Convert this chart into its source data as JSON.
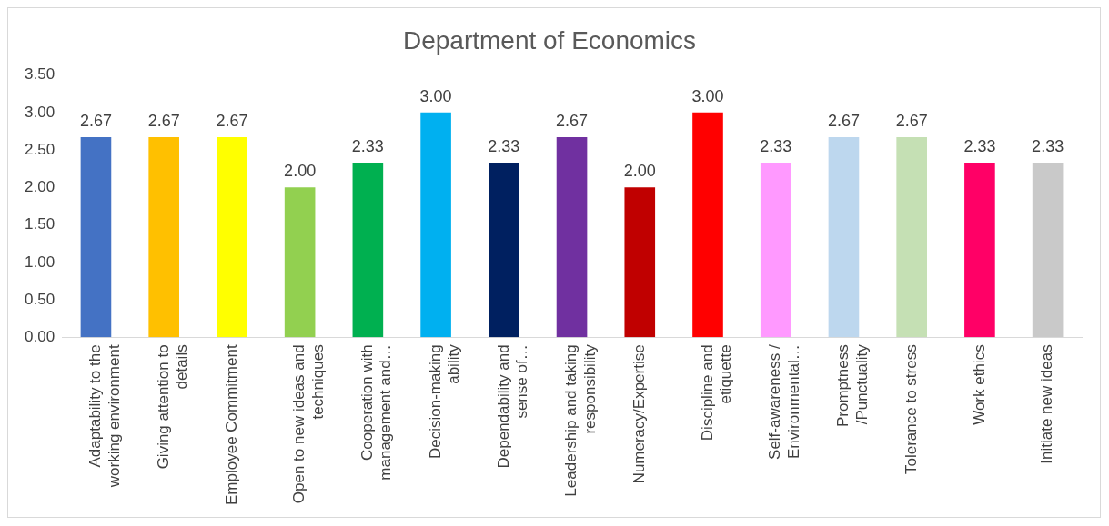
{
  "chart_data": {
    "type": "bar",
    "title": "Department of Economics",
    "categories": [
      "Adaptability to the working environment",
      "Giving attention to details",
      "Employee Commitment",
      "Open to new ideas and techniques",
      "Cooperation with management and…",
      "Decision-making ability",
      "Dependability and sense of…",
      "Leadership and taking responsibility",
      "Numeracy/Expertise",
      "Discipline and etiquette",
      "Self-awareness / Environmental…",
      "Promptness /Punctuality",
      "Tolerance to stress",
      "Work ethics",
      "Initiate new ideas"
    ],
    "values": [
      2.67,
      2.67,
      2.67,
      2.0,
      2.33,
      3.0,
      2.33,
      2.67,
      2.0,
      3.0,
      2.33,
      2.67,
      2.67,
      2.33,
      2.33
    ],
    "colors": [
      "#4472c4",
      "#ffc000",
      "#ffff00",
      "#92d050",
      "#00b050",
      "#00b0f0",
      "#002060",
      "#7030a0",
      "#c00000",
      "#ff0000",
      "#ff99ff",
      "#bdd7ee",
      "#c5e0b4",
      "#ff0066",
      "#c9c9c9"
    ],
    "ylim": [
      0,
      3.5
    ],
    "yticks": [
      {
        "value": 0,
        "label": "0.00"
      },
      {
        "value": 0.5,
        "label": "0.50"
      },
      {
        "value": 1,
        "label": "1.00"
      },
      {
        "value": 1.5,
        "label": "1.50"
      },
      {
        "value": 2,
        "label": "2.00"
      },
      {
        "value": 2.5,
        "label": "2.50"
      },
      {
        "value": 3,
        "label": "3.00"
      },
      {
        "value": 3.5,
        "label": "3.50"
      }
    ],
    "value_labels": [
      "2.67",
      "2.67",
      "2.67",
      "2.00",
      "2.33",
      "3.00",
      "2.33",
      "2.67",
      "2.00",
      "3.00",
      "2.33",
      "2.67",
      "2.67",
      "2.33",
      "2.33"
    ],
    "grid": false,
    "legend": false
  }
}
